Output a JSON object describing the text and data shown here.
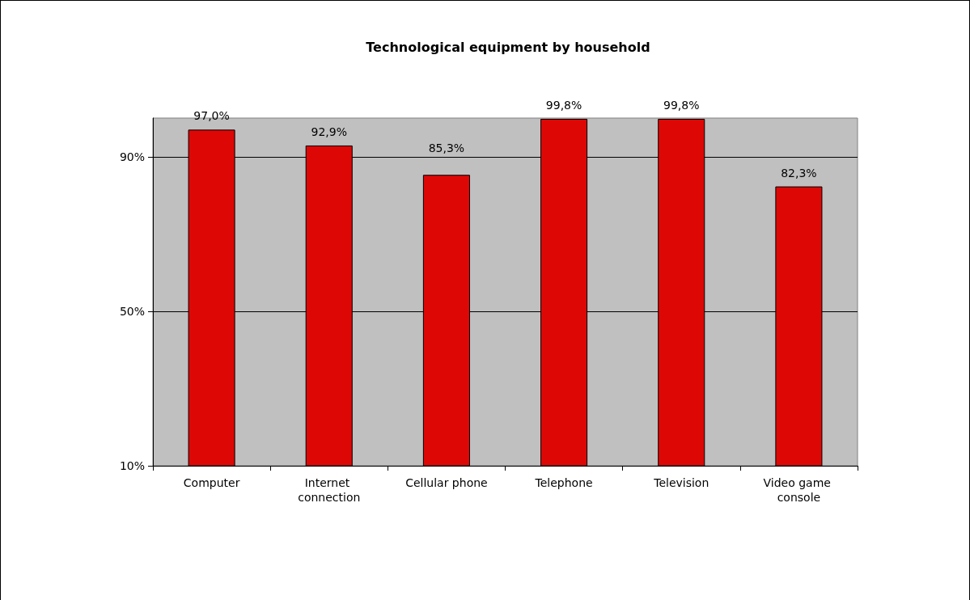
{
  "chart_data": {
    "type": "bar",
    "title": "Technological equipment by household",
    "categories": [
      "Computer",
      "Internet connection",
      "Cellular phone",
      "Telephone",
      "Television",
      "Video game console"
    ],
    "values": [
      97.0,
      92.9,
      85.3,
      99.8,
      99.8,
      82.3
    ],
    "value_labels": [
      "97,0%",
      "92,9%",
      "85,3%",
      "99,8%",
      "99,8%",
      "82,3%"
    ],
    "color": "#dd0806",
    "ylim": [
      10,
      100
    ],
    "yticks": [
      {
        "value": 10,
        "label": "10%"
      },
      {
        "value": 50,
        "label": "50%"
      },
      {
        "value": 90,
        "label": "90%"
      }
    ],
    "grid": "y"
  }
}
